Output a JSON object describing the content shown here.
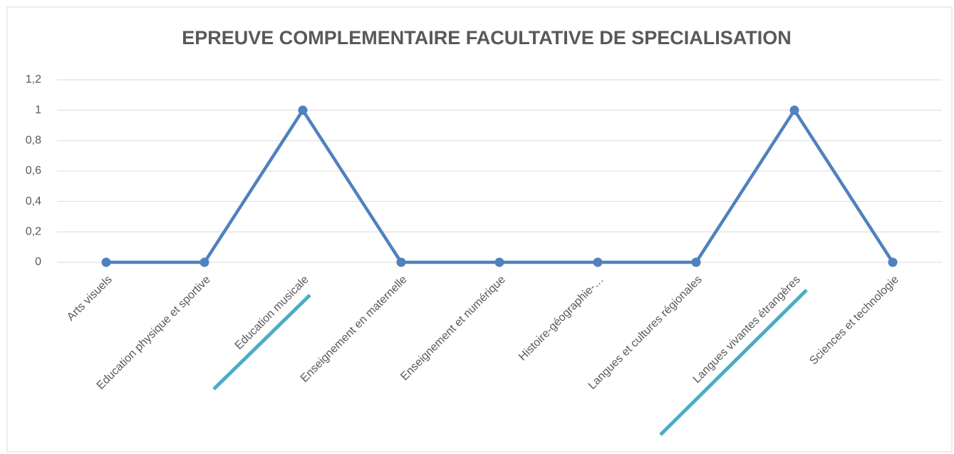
{
  "chart_data": {
    "type": "line",
    "title": "EPREUVE COMPLEMENTAIRE FACULTATIVE DE SPECIALISATION",
    "categories": [
      "Arts visuels",
      "Education physique et sportive",
      "Education musicale",
      "Enseignement en maternelle",
      "Enseignement et numérique",
      "Histoire-géographie-…",
      "Langues et cultures régionales",
      "Langues vivantes étrangères",
      "Sciences et technologie"
    ],
    "series": [
      {
        "name": "EPREUVE COMPLEMENTAIRE FACULTATIVE DE SPECIALISATION",
        "color": "#4f81bd",
        "values": [
          0,
          0,
          1,
          0,
          0,
          0,
          0,
          1,
          0
        ]
      }
    ],
    "ylim": [
      0,
      1.2
    ],
    "yticks": [
      0,
      {
        "value": 0.2,
        "label": "0,2"
      },
      {
        "value": 0.4,
        "label": "0,4"
      },
      {
        "value": 0.6,
        "label": "0,6"
      },
      {
        "value": 0.8,
        "label": "0,8"
      },
      1,
      {
        "value": 1.2,
        "label": "1,2"
      }
    ],
    "grid": true
  }
}
